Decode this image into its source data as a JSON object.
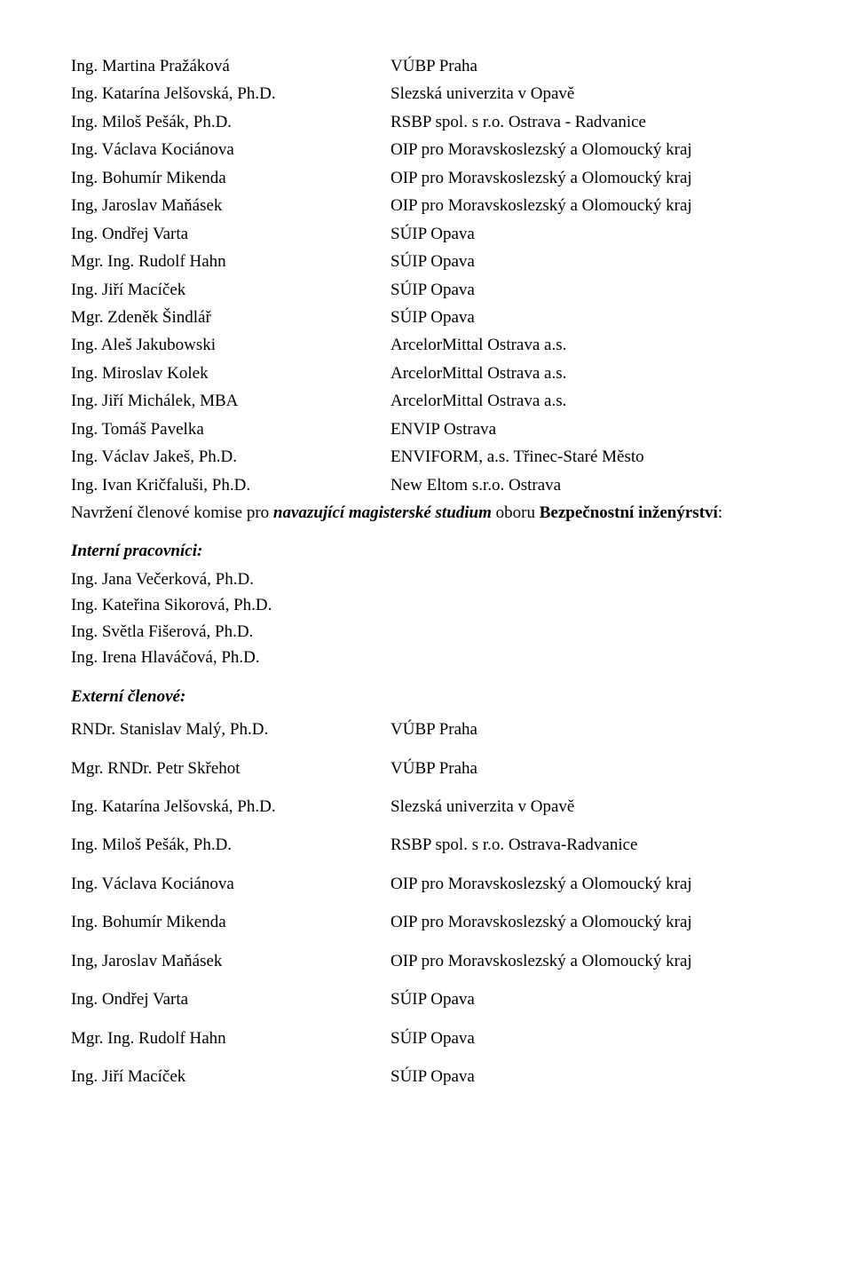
{
  "section1": {
    "rows": [
      {
        "name": "Ing. Martina Pražáková",
        "org": "VÚBP Praha"
      },
      {
        "name": "Ing. Katarína Jelšovská, Ph.D.",
        "org": "Slezská univerzita v Opavě"
      },
      {
        "name": "Ing. Miloš Pešák, Ph.D.",
        "org": "RSBP spol. s r.o. Ostrava - Radvanice"
      },
      {
        "name": "Ing. Václava Kociánova",
        "org": "OIP pro Moravskoslezský a Olomoucký kraj"
      },
      {
        "name": "Ing. Bohumír Mikenda",
        "org": "OIP pro Moravskoslezský a Olomoucký kraj"
      },
      {
        "name": "Ing, Jaroslav Maňásek",
        "org": "OIP pro Moravskoslezský a Olomoucký kraj"
      },
      {
        "name": "Ing. Ondřej Varta",
        "org": "SÚIP Opava"
      },
      {
        "name": "Mgr. Ing. Rudolf Hahn",
        "org": "SÚIP Opava"
      },
      {
        "name": "Ing. Jiří Macíček",
        "org": "SÚIP Opava"
      },
      {
        "name": "Mgr. Zdeněk Šindlář",
        "org": "SÚIP Opava"
      },
      {
        "name": "Ing. Aleš Jakubowski",
        "org": "ArcelorMittal Ostrava a.s."
      },
      {
        "name": "Ing. Miroslav Kolek",
        "org": "ArcelorMittal Ostrava a.s."
      },
      {
        "name": "Ing. Jiří Michálek, MBA",
        "org": "ArcelorMittal Ostrava a.s."
      },
      {
        "name": "Ing. Tomáš Pavelka",
        "org": "ENVIP Ostrava"
      },
      {
        "name": "Ing. Václav Jakeš, Ph.D.",
        "org": "ENVIFORM, a.s. Třinec-Staré Město"
      },
      {
        "name": "Ing. Ivan Kričfaluši, Ph.D.",
        "org": "New Eltom s.r.o. Ostrava"
      }
    ]
  },
  "para": {
    "prefix": "Navržení členové komise pro ",
    "mid_bold_ital": "navazující magisterské studium",
    "between": " oboru ",
    "bold_tail": "Bezpečnostní inženýrství",
    "after": ":"
  },
  "interni": {
    "heading": "Interní pracovníci:",
    "lines": [
      "Ing. Jana Večerková, Ph.D.",
      "Ing. Kateřina Sikorová, Ph.D.",
      "Ing. Světla Fišerová, Ph.D.",
      "Ing. Irena Hlaváčová, Ph.D."
    ]
  },
  "externi": {
    "heading": "Externí členové:",
    "rows": [
      {
        "name": "RNDr. Stanislav Malý, Ph.D.",
        "org": "VÚBP Praha"
      },
      {
        "name": "Mgr. RNDr. Petr Skřehot",
        "org": "VÚBP Praha"
      },
      {
        "name": "Ing. Katarína Jelšovská, Ph.D.",
        "org": "Slezská univerzita v Opavě"
      },
      {
        "name": "Ing. Miloš Pešák, Ph.D.",
        "org": "RSBP spol. s r.o. Ostrava-Radvanice"
      },
      {
        "name": "Ing. Václava Kociánova",
        "org": "OIP pro Moravskoslezský a Olomoucký kraj"
      },
      {
        "name": "Ing. Bohumír Mikenda",
        "org": "OIP pro Moravskoslezský a Olomoucký kraj"
      },
      {
        "name": "Ing, Jaroslav Maňásek",
        "org": "OIP pro Moravskoslezský a Olomoucký kraj"
      },
      {
        "name": "Ing. Ondřej Varta",
        "org": "SÚIP Opava"
      },
      {
        "name": "Mgr. Ing. Rudolf Hahn",
        "org": "SÚIP Opava"
      },
      {
        "name": "Ing. Jiří Macíček",
        "org": "SÚIP Opava"
      }
    ]
  }
}
